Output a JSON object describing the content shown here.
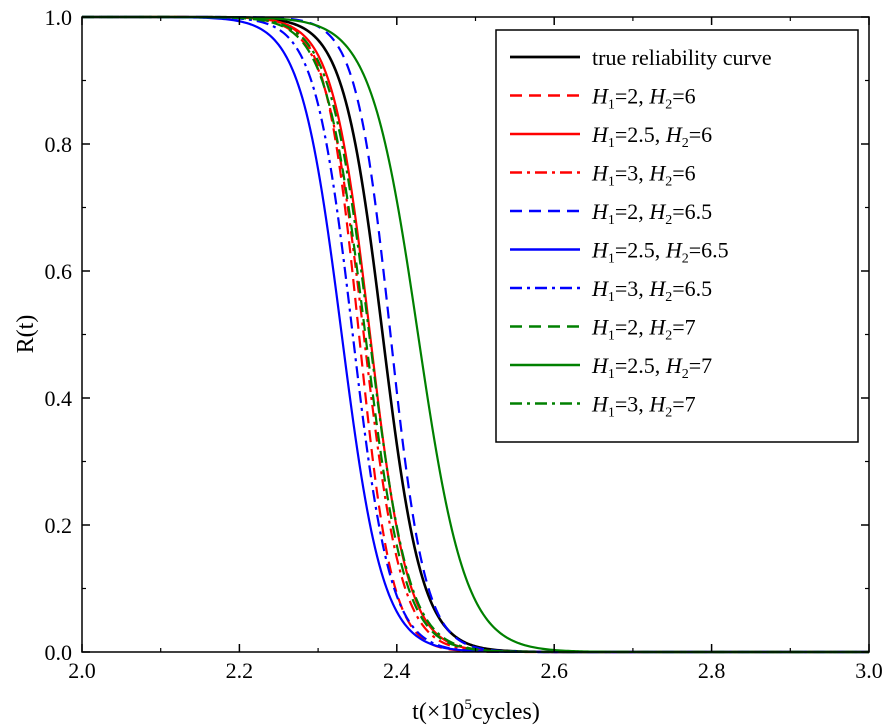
{
  "chart_data": {
    "type": "line",
    "title": "",
    "xlabel": {
      "prefix": "t(×10",
      "sup": "5",
      "suffix": "cycles)"
    },
    "ylabel": "R(t)",
    "xlim": [
      2.0,
      3.0
    ],
    "ylim": [
      0.0,
      1.0
    ],
    "x_ticks": [
      "2.0",
      "2.2",
      "2.4",
      "2.6",
      "2.8",
      "3.0"
    ],
    "y_ticks": [
      "0.0",
      "0.2",
      "0.4",
      "0.6",
      "0.8",
      "1.0"
    ],
    "grid": false,
    "legend_position": "top-right",
    "series": [
      {
        "name": "true reliability curve",
        "color": "#000000",
        "dash": "solid",
        "t50": 2.382,
        "s": 0.025
      },
      {
        "name": "H1=2, H2=6",
        "h1": "2",
        "h2": "6",
        "color": "#ff0000",
        "dash": "dash",
        "t50": 2.352,
        "s": 0.021
      },
      {
        "name": "H1=2.5, H2=6",
        "h1": "2.5",
        "h2": "6",
        "color": "#ff0000",
        "dash": "solid",
        "t50": 2.366,
        "s": 0.024
      },
      {
        "name": "H1=3, H2=6",
        "h1": "3",
        "h2": "6",
        "color": "#ff0000",
        "dash": "dashdot",
        "t50": 2.358,
        "s": 0.024
      },
      {
        "name": "H1=2, H2=6.5",
        "h1": "2",
        "h2": "6.5",
        "color": "#0000ff",
        "dash": "dash",
        "t50": 2.392,
        "s": 0.022
      },
      {
        "name": "H1=2.5, H2=6.5",
        "h1": "2.5",
        "h2": "6.5",
        "color": "#0000ff",
        "dash": "solid",
        "t50": 2.33,
        "s": 0.026
      },
      {
        "name": "H1=3, H2=6.5",
        "h1": "3",
        "h2": "6.5",
        "color": "#0000ff",
        "dash": "dashdot",
        "t50": 2.344,
        "s": 0.024
      },
      {
        "name": "H1=2, H2=7",
        "h1": "2",
        "h2": "7",
        "color": "#008000",
        "dash": "dash",
        "t50": 2.36,
        "s": 0.025
      },
      {
        "name": "H1=2.5, H2=7",
        "h1": "2.5",
        "h2": "7",
        "color": "#008000",
        "dash": "solid",
        "t50": 2.427,
        "s": 0.03
      },
      {
        "name": "H1=3, H2=7",
        "h1": "3",
        "h2": "7",
        "color": "#008000",
        "dash": "dashdot",
        "t50": 2.365,
        "s": 0.025
      }
    ]
  }
}
